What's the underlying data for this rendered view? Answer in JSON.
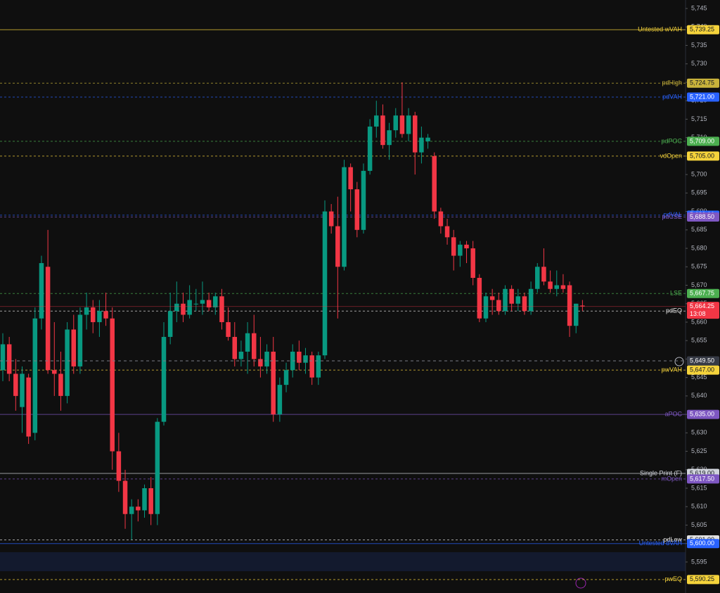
{
  "chart_data": {
    "type": "candlestick",
    "up_color": "#089981",
    "down_color": "#f23645",
    "ylim": [
      5586.6,
      5747.3
    ],
    "yticks": [
      {
        "value": 5595,
        "label": "5,595"
      },
      {
        "value": 5600,
        "label": "5,600"
      },
      {
        "value": 5605,
        "label": "5,605"
      },
      {
        "value": 5610,
        "label": "5,610"
      },
      {
        "value": 5615,
        "label": "5,615"
      },
      {
        "value": 5620,
        "label": "5,620"
      },
      {
        "value": 5625,
        "label": "5,625"
      },
      {
        "value": 5630,
        "label": "5,630"
      },
      {
        "value": 5635,
        "label": "5,635"
      },
      {
        "value": 5640,
        "label": "5,640"
      },
      {
        "value": 5645,
        "label": "5,645"
      },
      {
        "value": 5650,
        "label": "5,650"
      },
      {
        "value": 5655,
        "label": "5,655"
      },
      {
        "value": 5660,
        "label": "5,660"
      },
      {
        "value": 5665,
        "label": "5,665"
      },
      {
        "value": 5670,
        "label": "5,670"
      },
      {
        "value": 5675,
        "label": "5,675"
      },
      {
        "value": 5680,
        "label": "5,680"
      },
      {
        "value": 5685,
        "label": "5,685"
      },
      {
        "value": 5690,
        "label": "5,690"
      },
      {
        "value": 5695,
        "label": "5,695"
      },
      {
        "value": 5700,
        "label": "5,700"
      },
      {
        "value": 5705,
        "label": "5,705"
      },
      {
        "value": 5710,
        "label": "5,710"
      },
      {
        "value": 5715,
        "label": "5,715"
      },
      {
        "value": 5720,
        "label": "5,720"
      },
      {
        "value": 5725,
        "label": "5,725"
      },
      {
        "value": 5730,
        "label": "5,730"
      },
      {
        "value": 5735,
        "label": "5,735"
      },
      {
        "value": 5740,
        "label": "5,740"
      },
      {
        "value": 5745,
        "label": "5,745"
      }
    ],
    "open": [
      5647,
      5654,
      5646,
      5637,
      5645,
      5630,
      5661,
      5675,
      5647,
      5646,
      5640,
      5658,
      5648,
      5662,
      5664,
      5660,
      5663,
      5661,
      5625,
      5617,
      5608,
      5610,
      5609,
      5615,
      5608,
      5633,
      5656,
      5663,
      5665,
      5662,
      5665,
      5665,
      5666,
      5664,
      5667,
      5660,
      5656,
      5650,
      5652,
      5657,
      5650,
      5648,
      5652,
      5635,
      5643,
      5647,
      5652,
      5649,
      5651,
      5645,
      5651,
      5690,
      5686,
      5675,
      5702,
      5696,
      5685,
      5701,
      5713,
      5716,
      5708,
      5712,
      5716,
      5711,
      5716,
      5706,
      5709,
      5705,
      5690,
      5686,
      5683,
      5678,
      5681,
      5680,
      5672,
      5661,
      5667,
      5666,
      5663,
      5669,
      5665,
      5667,
      5663,
      5669,
      5675,
      5671,
      5669,
      5670,
      5670,
      5659,
      5664.5
    ],
    "high": [
      5657,
      5656,
      5650,
      5648,
      5646,
      5664,
      5678,
      5685,
      5660,
      5652,
      5660,
      5662,
      5664,
      5668,
      5666,
      5666,
      5668,
      5664,
      5630,
      5620,
      5612,
      5612,
      5616,
      5618,
      5634,
      5660,
      5668,
      5671,
      5668,
      5670,
      5669,
      5671,
      5668,
      5668,
      5669,
      5664,
      5660,
      5655,
      5660,
      5662,
      5656,
      5654,
      5656,
      5645,
      5649,
      5654,
      5655,
      5653,
      5652,
      5652,
      5693,
      5692,
      5694,
      5704,
      5703,
      5698,
      5703,
      5715,
      5720,
      5719,
      5714,
      5718,
      5725,
      5718,
      5717,
      5713,
      5711,
      5706,
      5691,
      5688,
      5685,
      5682,
      5682,
      5682,
      5673,
      5668,
      5669,
      5668,
      5670,
      5670,
      5669,
      5668,
      5671,
      5676,
      5680,
      5674,
      5674,
      5673,
      5671,
      5665,
      5666
    ],
    "low": [
      5644,
      5644,
      5636,
      5630,
      5627,
      5628,
      5658,
      5646,
      5640,
      5636,
      5638,
      5646,
      5646,
      5658,
      5657,
      5656,
      5659,
      5620,
      5614,
      5604,
      5601,
      5606,
      5607,
      5605,
      5605,
      5632,
      5654,
      5660,
      5660,
      5661,
      5663,
      5662,
      5663,
      5662,
      5658,
      5655,
      5648,
      5648,
      5646,
      5648,
      5645,
      5646,
      5633,
      5633,
      5641,
      5645,
      5647,
      5646,
      5643,
      5643,
      5650,
      5684,
      5661,
      5674,
      5690,
      5683,
      5684,
      5700,
      5710,
      5707,
      5704,
      5710,
      5710,
      5709,
      5700,
      5703,
      5707,
      5688,
      5684,
      5681,
      5674,
      5675,
      5676,
      5670,
      5660,
      5660,
      5662,
      5662,
      5662,
      5663,
      5663,
      5662,
      5662,
      5668,
      5670,
      5668,
      5667,
      5668,
      5656,
      5657,
      5663
    ],
    "close": [
      5654,
      5646,
      5640,
      5646,
      5629,
      5661,
      5676,
      5647,
      5646,
      5640,
      5658,
      5648,
      5662,
      5664,
      5660,
      5663,
      5661,
      5625,
      5617,
      5608,
      5610,
      5609,
      5615,
      5608,
      5633,
      5656,
      5663,
      5665,
      5662,
      5666,
      5665,
      5666,
      5664,
      5667,
      5660,
      5656,
      5650,
      5652,
      5657,
      5650,
      5648,
      5652,
      5635,
      5643,
      5647,
      5652,
      5649,
      5651,
      5645,
      5651,
      5690,
      5686,
      5675,
      5702,
      5696,
      5685,
      5701,
      5713,
      5716,
      5708,
      5712,
      5716,
      5711,
      5716,
      5706,
      5710,
      5710,
      5690,
      5686,
      5683,
      5678,
      5681,
      5680,
      5672,
      5661,
      5667,
      5666,
      5663,
      5669,
      5665,
      5667,
      5663,
      5669,
      5675,
      5671,
      5669,
      5670,
      5669,
      5659,
      5665,
      5664.25
    ],
    "levels": [
      {
        "name": "Untested wVAH",
        "value": 5739.25,
        "label": "5,739.25",
        "color": "#f5d33b",
        "dashed": false
      },
      {
        "name": "pdHigh",
        "value": 5724.75,
        "label": "5,724.75",
        "color": "#c9b33b",
        "dashed": true
      },
      {
        "name": "pdVAH",
        "value": 5721,
        "label": "5,721.00",
        "color": "#2962ff",
        "dashed": true
      },
      {
        "name": "pdPOC",
        "value": 5709,
        "label": "5,709.00",
        "color": "#4caf50",
        "dashed": true
      },
      {
        "name": "vdOpen",
        "value": 5705,
        "label": "5,705.00",
        "color": "#f5d33b",
        "dashed": true
      },
      {
        "name": "pdVAL",
        "value": 5689,
        "label": "5,689.00",
        "color": "#2962ff",
        "dashed": true
      },
      {
        "name": "pdCSE",
        "value": 5688.5,
        "label": "5,688.50",
        "color": "#7e57c2",
        "dashed": true
      },
      {
        "name": "LSE",
        "value": 5667.75,
        "label": "5,667.75",
        "color": "#4caf50",
        "dashed": true
      },
      {
        "name": "pdEQ",
        "value": 5663,
        "label": "5,663.00",
        "color": "#e0e0e0",
        "dashed": true
      },
      {
        "name": "pwVAH",
        "value": 5647,
        "label": "5,647.00",
        "color": "#f5d33b",
        "dashed": true
      },
      {
        "name": "aPOC",
        "value": 5635,
        "label": "5,635.00",
        "color": "#7e57c2",
        "dashed": false
      },
      {
        "name": "Single Print (F)",
        "value": 5619,
        "label": "5,619.00",
        "color": "#d1d4dc",
        "dashed": false
      },
      {
        "name": "mOpen",
        "value": 5617.5,
        "label": "5,617.50",
        "color": "#7e57c2",
        "dashed": true
      },
      {
        "name": "pdLow",
        "value": 5601,
        "label": "5,601.00",
        "color": "#e0e0e0",
        "dashed": true
      },
      {
        "name": "Untested dVAH",
        "value": 5600,
        "label": "5,600.00",
        "color": "#2962ff",
        "dashed": false
      },
      {
        "name": "pwEQ",
        "value": 5590.25,
        "label": "5,590.25",
        "color": "#f5d33b",
        "dashed": true
      }
    ],
    "crosshair": {
      "value": 5649.5,
      "label": "5,649.50"
    },
    "last": {
      "value": 5664.25,
      "label": "5,664.25",
      "countdown": "13:08",
      "color": "#f23645"
    }
  }
}
